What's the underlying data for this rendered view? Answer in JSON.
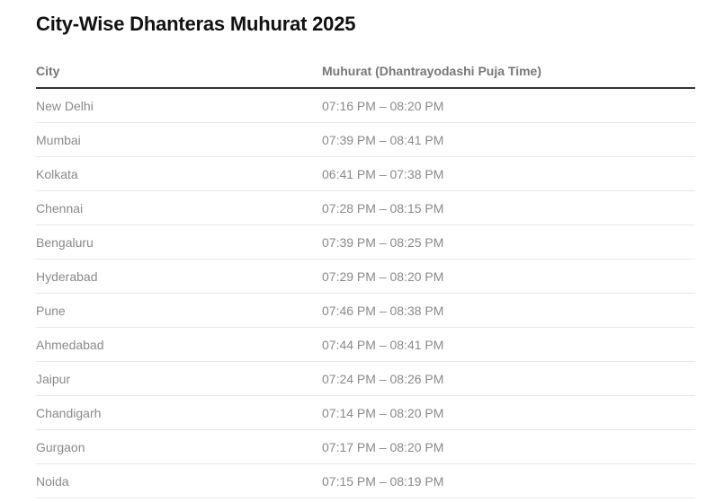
{
  "title": "City-Wise Dhanteras Muhurat 2025",
  "table": {
    "headers": [
      "City",
      "Muhurat (Dhantrayodashi Puja Time)"
    ],
    "rows": [
      [
        "New Delhi",
        "07:16 PM – 08:20 PM"
      ],
      [
        "Mumbai",
        "07:39 PM – 08:41 PM"
      ],
      [
        "Kolkata",
        "06:41 PM – 07:38 PM"
      ],
      [
        "Chennai",
        "07:28 PM – 08:15 PM"
      ],
      [
        "Bengaluru",
        "07:39 PM – 08:25 PM"
      ],
      [
        "Hyderabad",
        "07:29 PM – 08:20 PM"
      ],
      [
        "Pune",
        "07:46 PM – 08:38 PM"
      ],
      [
        "Ahmedabad",
        "07:44 PM – 08:41 PM"
      ],
      [
        "Jaipur",
        "07:24 PM – 08:26 PM"
      ],
      [
        "Chandigarh",
        "07:14 PM – 08:20 PM"
      ],
      [
        "Gurgaon",
        "07:17 PM – 08:20 PM"
      ],
      [
        "Noida",
        "07:15 PM – 08:19 PM"
      ]
    ]
  }
}
